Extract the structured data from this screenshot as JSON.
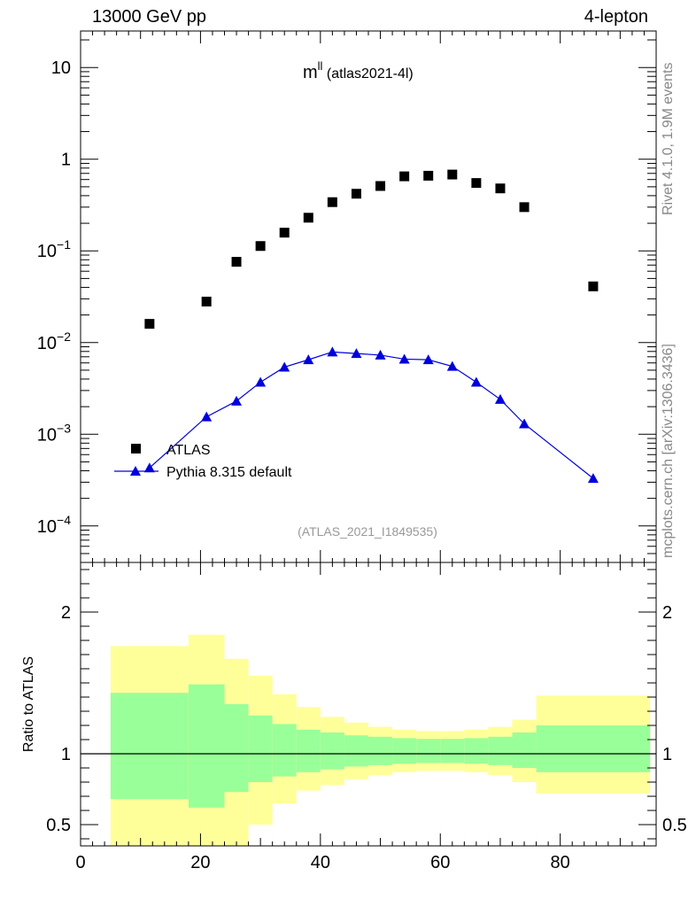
{
  "header": {
    "left": "13000 GeV pp",
    "right": "4-lepton"
  },
  "side_labels": {
    "rivet": "Rivet 4.1.0,  1.9M events",
    "source": "mcplots.cern.ch [arXiv:1306.3436]"
  },
  "chart_data": {
    "type": "scatter",
    "title_main": "m",
    "title_sup": "ll",
    "title_tag": "(atlas2021-4l)",
    "analysis_id": "(ATLAS_2021_I1849535)",
    "xlabel": "",
    "xlim": [
      0,
      96
    ],
    "xticks": [
      0,
      20,
      40,
      60,
      80
    ],
    "main": {
      "yscale": "log",
      "ylim": [
        4e-05,
        25
      ],
      "ytick_labels": [
        {
          "value": 10,
          "base": "10",
          "exp": ""
        },
        {
          "value": 1,
          "base": "1",
          "exp": ""
        },
        {
          "value": 0.1,
          "base": "10",
          "exp": "−1"
        },
        {
          "value": 0.01,
          "base": "10",
          "exp": "−2"
        },
        {
          "value": 0.001,
          "base": "10",
          "exp": "−3"
        },
        {
          "value": 0.0001,
          "base": "10",
          "exp": "−4"
        }
      ]
    },
    "ratio": {
      "ylabel": "Ratio to ATLAS",
      "ylim": [
        0.35,
        2.35
      ],
      "yticks": [
        0.5,
        1,
        2
      ],
      "ytick_labels": [
        "0.5",
        "1",
        "2"
      ],
      "reference": 1
    },
    "series": [
      {
        "name": "ATLAS",
        "marker": "square",
        "color": "#000000",
        "x": [
          11.5,
          21,
          26,
          30,
          34,
          38,
          42,
          46,
          50,
          54,
          58,
          62,
          66,
          70,
          74,
          85.5
        ],
        "values": [
          0.016,
          0.028,
          0.076,
          0.113,
          0.158,
          0.23,
          0.34,
          0.42,
          0.51,
          0.65,
          0.66,
          0.68,
          0.55,
          0.48,
          0.3,
          0.041
        ],
        "bins": [
          [
            5,
            18
          ],
          [
            18,
            24
          ],
          [
            24,
            28
          ],
          [
            28,
            32
          ],
          [
            32,
            36
          ],
          [
            36,
            40
          ],
          [
            40,
            44
          ],
          [
            44,
            48
          ],
          [
            48,
            52
          ],
          [
            52,
            56
          ],
          [
            56,
            60
          ],
          [
            60,
            64
          ],
          [
            64,
            68
          ],
          [
            68,
            72
          ],
          [
            72,
            76
          ],
          [
            76,
            95
          ]
        ],
        "band_stat": [
          [
            0.68,
            1.43
          ],
          [
            0.62,
            1.49
          ],
          [
            0.73,
            1.35
          ],
          [
            0.8,
            1.27
          ],
          [
            0.84,
            1.21
          ],
          [
            0.87,
            1.17
          ],
          [
            0.89,
            1.15
          ],
          [
            0.91,
            1.13
          ],
          [
            0.92,
            1.12
          ],
          [
            0.93,
            1.11
          ],
          [
            0.935,
            1.105
          ],
          [
            0.935,
            1.105
          ],
          [
            0.93,
            1.11
          ],
          [
            0.92,
            1.12
          ],
          [
            0.9,
            1.15
          ],
          [
            0.87,
            1.2
          ]
        ],
        "band_total": [
          [
            0.35,
            1.76
          ],
          [
            0.35,
            1.84
          ],
          [
            0.35,
            1.67
          ],
          [
            0.5,
            1.55
          ],
          [
            0.65,
            1.42
          ],
          [
            0.74,
            1.33
          ],
          [
            0.78,
            1.26
          ],
          [
            0.82,
            1.22
          ],
          [
            0.85,
            1.19
          ],
          [
            0.87,
            1.17
          ],
          [
            0.88,
            1.16
          ],
          [
            0.88,
            1.16
          ],
          [
            0.87,
            1.17
          ],
          [
            0.85,
            1.19
          ],
          [
            0.8,
            1.24
          ],
          [
            0.72,
            1.41
          ]
        ]
      },
      {
        "name": "Pythia 8.315 default",
        "marker": "triangle",
        "color": "#0000dd",
        "x": [
          11.5,
          21,
          26,
          30,
          34,
          38,
          42,
          46,
          50,
          54,
          58,
          62,
          66,
          70,
          74,
          85.5
        ],
        "values": [
          0.00043,
          0.00155,
          0.0023,
          0.0037,
          0.0054,
          0.0065,
          0.0079,
          0.0076,
          0.0073,
          0.0066,
          0.0065,
          0.0055,
          0.0037,
          0.0024,
          0.0013,
          0.00033
        ]
      }
    ],
    "band_colors": {
      "stat": "#99ff99",
      "total": "#ffff99"
    }
  }
}
